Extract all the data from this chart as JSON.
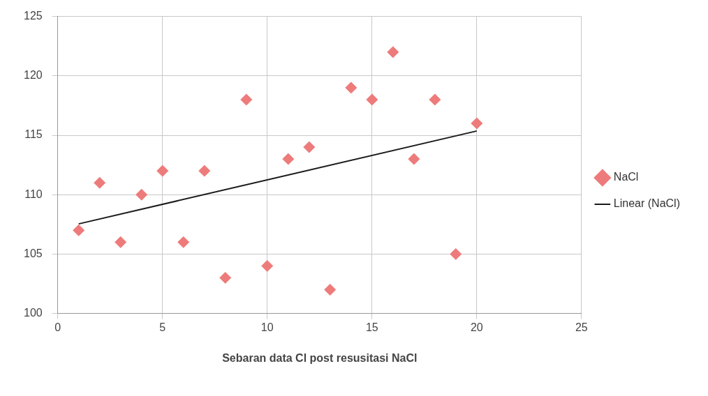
{
  "chart_data": {
    "type": "scatter",
    "xlabel": "Sebaran data Cl post resusitasi NaCl",
    "x": [
      1,
      2,
      3,
      4,
      5,
      6,
      7,
      8,
      9,
      10,
      11,
      12,
      13,
      14,
      15,
      16,
      17,
      18,
      19,
      20
    ],
    "series": [
      {
        "name": "NaCl",
        "color": "#ee7b7b",
        "marker": "diamond",
        "values": [
          107,
          111,
          106,
          110,
          112,
          106,
          112,
          103,
          118,
          104,
          113,
          114,
          102,
          119,
          118,
          122,
          113,
          118,
          105,
          116
        ]
      },
      {
        "name": "Linear (NaCl)",
        "type": "line",
        "color": "#1a1a1a",
        "marker": "none",
        "x": [
          1,
          20
        ],
        "values": [
          107.54,
          115.36
        ]
      }
    ],
    "xlim": [
      0,
      25
    ],
    "xticks": [
      0,
      5,
      10,
      15,
      20,
      25
    ],
    "ylim": [
      100,
      125
    ],
    "yticks": [
      100,
      105,
      110,
      115,
      120,
      125
    ],
    "grid": true,
    "legend": "right"
  }
}
